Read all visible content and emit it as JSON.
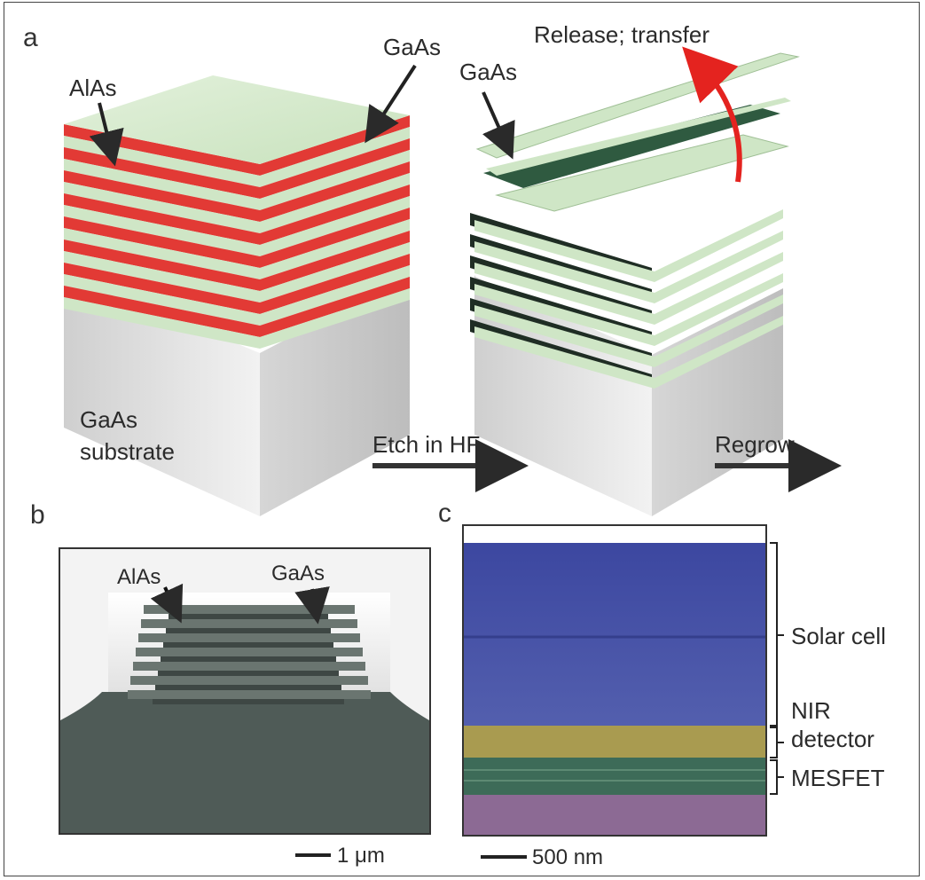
{
  "panel_a": {
    "letter": "a",
    "left_labels": {
      "alas": "AlAs",
      "gaas": "GaAs",
      "substrate_line1": "GaAs",
      "substrate_line2": "substrate"
    },
    "right_labels": {
      "gaas": "GaAs",
      "release": "Release; transfer"
    },
    "step1": "Etch in HF",
    "step2": "Regrow"
  },
  "panel_b": {
    "letter": "b",
    "alas": "AlAs",
    "gaas": "GaAs",
    "scale": "1 μm"
  },
  "panel_c": {
    "letter": "c",
    "solar": "Solar cell",
    "nir_line1": "NIR",
    "nir_line2": "detector",
    "mesfet": "MESFET",
    "scale": "500 nm"
  },
  "colors": {
    "gaas_layer": "#cfe6c6",
    "alas_layer": "#e23a35",
    "substrate": "#d9d9d9",
    "arrow_red": "#e4231f",
    "solar": "#4b55a8",
    "nir": "#a99b50",
    "mesfet": "#3d6b58",
    "base": "#8c6a94"
  }
}
